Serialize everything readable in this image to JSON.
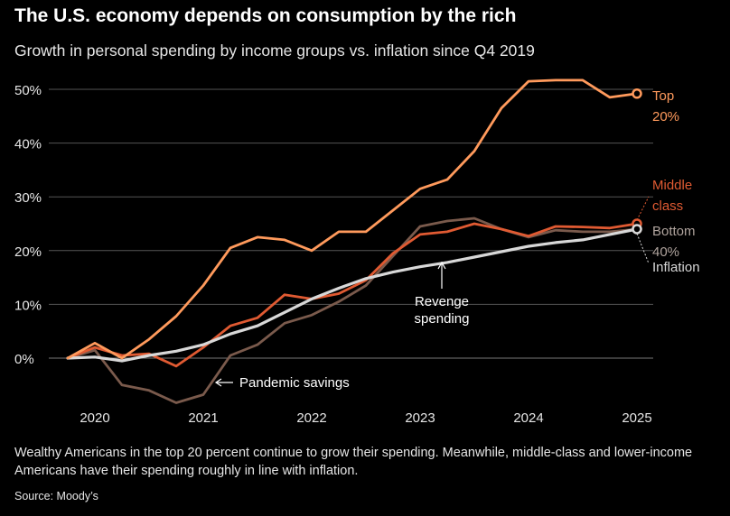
{
  "title": "The U.S. economy depends on consumption by the rich",
  "subtitle": "Growth in personal spending by income groups vs. inflation since Q4 2019",
  "footnote": "Wealthy Americans in the top 20 percent continue to grow their spending. Meanwhile, middle-class and lower-income Americans have their spending roughly in line with inflation.",
  "source": "Source: Moody’s",
  "colors": {
    "top20": "#ff9a5c",
    "middle": "#e05a32",
    "bottom": "#7a5a4c",
    "inflation": "#d8d8d8",
    "grid": "#555555",
    "text": "#e6e6e6"
  },
  "chart_data": {
    "type": "line",
    "x": [
      2019.75,
      2020.0,
      2020.25,
      2020.5,
      2020.75,
      2021.0,
      2021.25,
      2021.5,
      2021.75,
      2022.0,
      2022.25,
      2022.5,
      2022.75,
      2023.0,
      2023.25,
      2023.5,
      2023.75,
      2024.0,
      2024.25,
      2024.5,
      2024.75,
      2025.0
    ],
    "x_ticks": [
      2020,
      2021,
      2022,
      2023,
      2024,
      2025
    ],
    "x_tick_labels": [
      "2020",
      "2021",
      "2022",
      "2023",
      "2024",
      "2025"
    ],
    "y_ticks": [
      0,
      10,
      20,
      30,
      40,
      50
    ],
    "y_tick_labels": [
      "0%",
      "10%",
      "20%",
      "30%",
      "40%",
      "50%"
    ],
    "xlim": [
      2019.6,
      2025.15
    ],
    "ylim": [
      -9,
      52
    ],
    "grid": true,
    "xlabel": "",
    "ylabel": "",
    "series": [
      {
        "key": "bottom",
        "label_lines": [
          "Bottom",
          "40%"
        ],
        "values": [
          0,
          1.5,
          -5,
          -6,
          -8.3,
          -6.8,
          0.5,
          2.5,
          6.5,
          8,
          10.5,
          13.5,
          19,
          24.5,
          25.5,
          26,
          24,
          22.5,
          23.8,
          23.5,
          23.5,
          24
        ]
      },
      {
        "key": "middle",
        "label_lines": [
          "Middle",
          "class"
        ],
        "values": [
          0,
          2,
          0.5,
          0.8,
          -1.5,
          2,
          6,
          7.5,
          11.8,
          11,
          12,
          14.5,
          19.5,
          23,
          23.5,
          25,
          24,
          22.7,
          24.5,
          24.4,
          24.2,
          25
        ]
      },
      {
        "key": "inflation",
        "label_lines": [
          "Inflation"
        ],
        "values": [
          0,
          0.2,
          -0.5,
          0.5,
          1.3,
          2.5,
          4.5,
          6,
          8.5,
          11,
          13,
          14.8,
          16,
          17,
          17.8,
          18.8,
          19.8,
          20.8,
          21.5,
          22,
          23,
          24
        ]
      },
      {
        "key": "top20",
        "label_lines": [
          "Top",
          "20%"
        ],
        "values": [
          0,
          2.8,
          0,
          3.5,
          7.8,
          13.5,
          20.5,
          22.5,
          22,
          20,
          23.5,
          23.5,
          27.5,
          31.5,
          33.2,
          38.5,
          46.5,
          51.5,
          51.7,
          51.7,
          48.5,
          49.2
        ]
      }
    ],
    "annotations": [
      {
        "text": "Revenge",
        "text2": "spending",
        "x": 2023.2,
        "y": 13.2,
        "arrow_to_x": 2023.2,
        "arrow_to_y": 18.3
      },
      {
        "text": "Pandemic savings",
        "arrow_from_x": 2021.33,
        "x": 2021.14,
        "y": -6.3
      }
    ]
  }
}
